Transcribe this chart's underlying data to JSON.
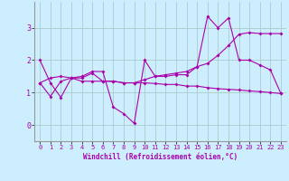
{
  "background_color": "#cceeff",
  "grid_color": "#aacccc",
  "line_color": "#aa00aa",
  "markersize": 2.0,
  "linewidth": 0.8,
  "xlabel": "Windchill (Refroidissement éolien,°C)",
  "xlim": [
    -0.5,
    23.5
  ],
  "ylim": [
    -0.5,
    3.8
  ],
  "xticks": [
    0,
    1,
    2,
    3,
    4,
    5,
    6,
    7,
    8,
    9,
    10,
    11,
    12,
    13,
    14,
    15,
    16,
    17,
    18,
    19,
    20,
    21,
    22,
    23
  ],
  "yticks": [
    0,
    1,
    2,
    3
  ],
  "line1_x": [
    0,
    1,
    2,
    3,
    4,
    5,
    6,
    7,
    8,
    9,
    10,
    11,
    12,
    13,
    14,
    15,
    16,
    17,
    18,
    19,
    20,
    21,
    22,
    23
  ],
  "line1_y": [
    2.0,
    1.3,
    0.85,
    1.45,
    1.5,
    1.65,
    1.65,
    0.55,
    0.35,
    0.05,
    2.0,
    1.5,
    1.5,
    1.55,
    1.55,
    1.8,
    3.35,
    3.0,
    3.3,
    2.0,
    2.0,
    1.85,
    1.7,
    0.97
  ],
  "line2_x": [
    0,
    1,
    2,
    3,
    4,
    5,
    6,
    7,
    8,
    9,
    10,
    11,
    12,
    13,
    14,
    15,
    16,
    17,
    18,
    19,
    20,
    21,
    22,
    23
  ],
  "line2_y": [
    1.3,
    1.45,
    1.5,
    1.45,
    1.35,
    1.35,
    1.35,
    1.35,
    1.3,
    1.3,
    1.3,
    1.28,
    1.25,
    1.25,
    1.2,
    1.2,
    1.15,
    1.12,
    1.1,
    1.08,
    1.05,
    1.03,
    1.0,
    0.97
  ],
  "line3_x": [
    0,
    1,
    2,
    3,
    4,
    5,
    6,
    7,
    8,
    9,
    10,
    11,
    12,
    13,
    14,
    15,
    16,
    17,
    18,
    19,
    20,
    21,
    22,
    23
  ],
  "line3_y": [
    1.3,
    0.88,
    1.35,
    1.45,
    1.45,
    1.6,
    1.35,
    1.35,
    1.3,
    1.3,
    1.4,
    1.5,
    1.55,
    1.6,
    1.65,
    1.8,
    1.9,
    2.15,
    2.45,
    2.8,
    2.85,
    2.82,
    2.82,
    2.82
  ]
}
